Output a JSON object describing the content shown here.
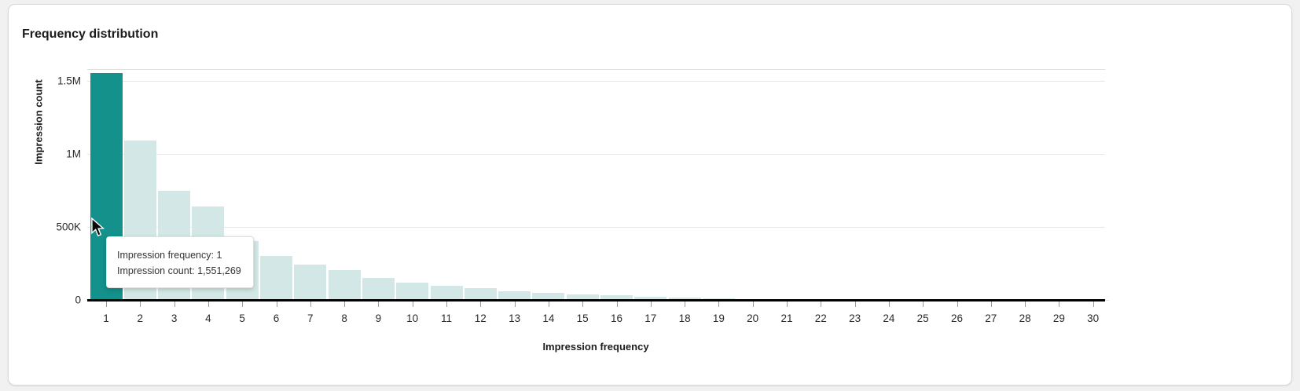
{
  "page": {
    "background": "#f1f1f1"
  },
  "card": {
    "title": "Frequency distribution"
  },
  "chart_data": {
    "type": "bar",
    "title": "Frequency distribution",
    "xlabel": "Impression frequency",
    "ylabel": "Impression count",
    "categories": [
      "1",
      "2",
      "3",
      "4",
      "5",
      "6",
      "7",
      "8",
      "9",
      "10",
      "11",
      "12",
      "13",
      "14",
      "15",
      "16",
      "17",
      "18",
      "19",
      "20",
      "21",
      "22",
      "23",
      "24",
      "25",
      "26",
      "27",
      "28",
      "29",
      "30"
    ],
    "values": [
      1551269,
      1090000,
      748000,
      640000,
      405000,
      300000,
      240000,
      205000,
      150000,
      120000,
      96000,
      82000,
      61000,
      47000,
      38000,
      31000,
      22000,
      16000,
      11000,
      7000,
      5000,
      3500,
      2500,
      2000,
      1600,
      1300,
      1000,
      800,
      650,
      500
    ],
    "ylim": [
      0,
      1580000
    ],
    "y_ticks": [
      {
        "value": 0,
        "label": "0"
      },
      {
        "value": 500000,
        "label": "500K"
      },
      {
        "value": 1000000,
        "label": "1M"
      },
      {
        "value": 1500000,
        "label": "1.5M"
      }
    ],
    "grid": true,
    "legend": "none",
    "highlighted_index": 0,
    "highlighted_point": {
      "x": 1,
      "y": 1551269
    },
    "colors": {
      "bar": "#d3e8e6",
      "bar_highlight": "#13918a",
      "axis": "#000000",
      "gridline": "#e6e6e6",
      "plot_top_border": "#e0e0e0",
      "tick": "#9a9a9a",
      "label": "#2b2b2b"
    }
  },
  "tooltip": {
    "frequency_line": "Impression frequency: 1",
    "count_line": "Impression count: 1,551,269"
  }
}
